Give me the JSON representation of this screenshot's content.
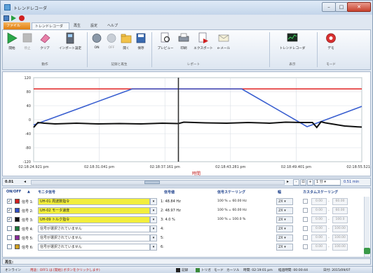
{
  "window": {
    "title": "トレンドレコーダ",
    "controls": [
      "–",
      "□",
      "✕"
    ]
  },
  "quick_access": {
    "icons": [
      "save-icon",
      "play-icon",
      "record-icon"
    ]
  },
  "tabs": [
    {
      "label": "ファイル"
    },
    {
      "label": "トレンドレコーダ"
    },
    {
      "label": "再生"
    },
    {
      "label": "設定"
    },
    {
      "label": "ヘルプ"
    }
  ],
  "ribbon": {
    "buttons": {
      "start": "開始",
      "stop": "停止",
      "clear": "クリア",
      "import": "インポート設定",
      "on": "ON",
      "off": "OFF",
      "open": "開く",
      "save": "保存",
      "preview": "プレビュー",
      "print": "印刷",
      "export": "エクスポート",
      "email": "e-メール",
      "trend": "トレンドレコーダ",
      "demo": "デモ"
    },
    "groups": {
      "operation": "動作",
      "record": "記録と再生",
      "report": "レポート",
      "display": "表示",
      "mode": "モード"
    }
  },
  "chart_data": {
    "type": "line",
    "xlabel": "時間",
    "ylabel": "",
    "x_ticks": [
      "02:18:24.921 pm",
      "02:18:31.041 pm",
      "02:18:37.161 pm",
      "02:18:43.281 pm",
      "02:18:49.401 pm",
      "02:18:55.521 pm"
    ],
    "y_ticks": [
      "120",
      "80",
      "40",
      "0",
      "-40",
      "-80",
      "-120"
    ],
    "ylim": [
      -120,
      120
    ],
    "x_range": [
      0,
      30.6
    ],
    "cursor_x": 13.5,
    "grid": true,
    "series": [
      {
        "color": "#e02020",
        "x": [
          0,
          30.6
        ],
        "y": [
          88,
          88
        ]
      },
      {
        "color": "#3a5fd0",
        "x": [
          0,
          9.2,
          19.4,
          25.5,
          30.6
        ],
        "y": [
          -15,
          88,
          88,
          -20,
          38
        ]
      },
      {
        "color": "#111111",
        "x": [
          0,
          0.4,
          1.0,
          2.0,
          4.0,
          6.0,
          8.0,
          10.0,
          12.0,
          13.5,
          14.0,
          16.0,
          18.0,
          20.0,
          22.0,
          23.5,
          25.0,
          26.0,
          26.4,
          26.8,
          27.2,
          28.0,
          29.0,
          30.0,
          30.6
        ],
        "y": [
          -22,
          -8,
          -10,
          -12,
          -10,
          -12,
          -11,
          -12,
          -10,
          -11,
          -7,
          -9,
          -10,
          -8,
          -10,
          -7,
          -8,
          -8,
          -22,
          -6,
          -9,
          -13,
          -18,
          -20,
          -21
        ]
      }
    ]
  },
  "position": {
    "value": "0.01"
  },
  "span": {
    "select": "1 分",
    "value": "0.51 min"
  },
  "zoom": {
    "minus": "-",
    "fit": "⊡",
    "plus": "+"
  },
  "table": {
    "headers": {
      "onoff": "ON/OFF",
      "sort": "▲",
      "monitor": "モニタ信号",
      "signal_value": "信号値",
      "scaling": "信号スケーリング",
      "width": "幅",
      "custom": "カスタムスケーリング"
    },
    "rows": [
      {
        "checked": true,
        "color": "#d02020",
        "name": "信号 1:",
        "signal": "UH-01 周波数指令",
        "value": "1: 48.84 Hz",
        "scaling": "100 % = 60.00 Hz",
        "mag": "2X",
        "cs_min": "0.00",
        "cs_max": "60.00",
        "active": true
      },
      {
        "checked": true,
        "color": "#3050c8",
        "name": "信号 2:",
        "signal": "UH-02 モータ速度",
        "value": "2: 48.97 Hz",
        "scaling": "100 % = 60.00 Hz",
        "mag": "2X",
        "cs_min": "0.00",
        "cs_max": "60.00",
        "active": true
      },
      {
        "checked": true,
        "color": "#111111",
        "name": "信号 3:",
        "signal": "UH-09 トルク指令",
        "value": "3: 4.0 %",
        "scaling": "100 % = 100.0 %",
        "mag": "2X",
        "cs_min": "0.00",
        "cs_max": "100.0",
        "active": true
      },
      {
        "checked": false,
        "color": "#1a7a3a",
        "name": "信号 4:",
        "signal": "信号が選択されていません",
        "value": "4:",
        "scaling": "",
        "mag": "2X",
        "cs_min": "0.00",
        "cs_max": "100.00",
        "active": false
      },
      {
        "checked": false,
        "color": "#8a2a9a",
        "name": "信号 5:",
        "signal": "信号が選択されていません",
        "value": "5:",
        "scaling": "",
        "mag": "2X",
        "cs_min": "0.00",
        "cs_max": "100.00",
        "active": false
      },
      {
        "checked": false,
        "color": "#d0a020",
        "name": "信号 6:",
        "signal": "信号が選択されていません",
        "value": "6:",
        "scaling": "",
        "mag": "2X",
        "cs_min": "0.00",
        "cs_max": "100.00",
        "active": false
      }
    ]
  },
  "comment": {
    "label": "再生:"
  },
  "status": {
    "online": "オンライン",
    "message": "用途：OFF1 は [開始] ボタンをクリックします)",
    "record": "記録",
    "trigger": "トリガ",
    "mode": "モード",
    "cursor": "カーソル",
    "time": "時間: 02:19:01 pm",
    "elapsed": "経過時間: 00:00:44",
    "date": "日付: 2015/09/07"
  }
}
